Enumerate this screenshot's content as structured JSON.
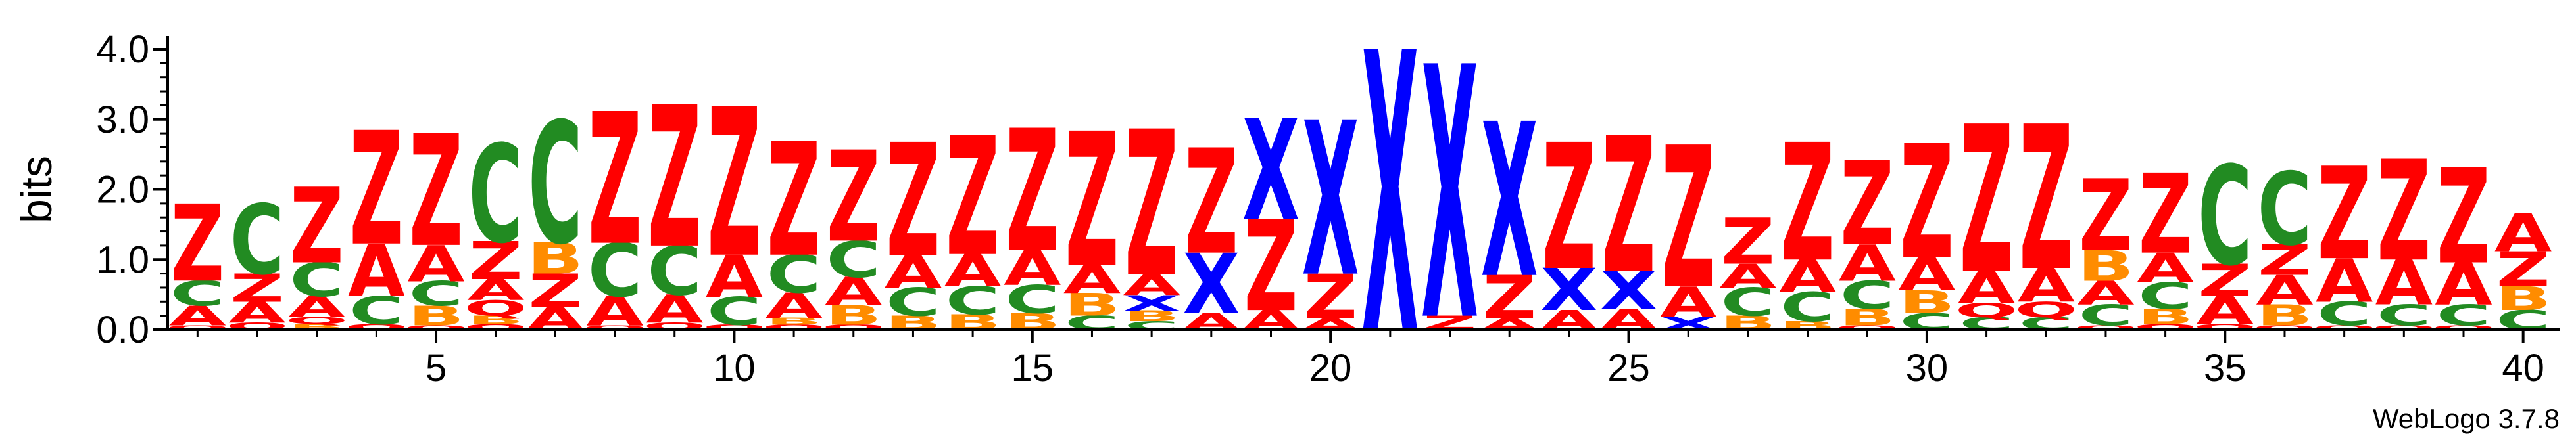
{
  "chart_data": {
    "type": "sequence-logo",
    "ylabel": "bits",
    "ylim": [
      0,
      4.0
    ],
    "yticks": [
      "0.0",
      "1.0",
      "2.0",
      "3.0",
      "4.0"
    ],
    "xticks": [
      5,
      10,
      15,
      20,
      25,
      30,
      35,
      40
    ],
    "credit": "WebLogo 3.7.8",
    "colors": {
      "Z": "#ff0000",
      "X": "#0000ff",
      "C": "#228b22",
      "A": "#ff0000",
      "B": "#ff8c00",
      "Q": "#ff0000"
    },
    "positions": [
      {
        "pos": 1,
        "stack": [
          [
            "Q",
            0.06
          ],
          [
            "A",
            0.28
          ],
          [
            "C",
            0.36
          ],
          [
            "Z",
            1.1
          ]
        ]
      },
      {
        "pos": 2,
        "stack": [
          [
            "Q",
            0.1
          ],
          [
            "A",
            0.3
          ],
          [
            "Z",
            0.4
          ],
          [
            "C",
            1.0
          ]
        ]
      },
      {
        "pos": 3,
        "stack": [
          [
            "B",
            0.08
          ],
          [
            "Q",
            0.1
          ],
          [
            "A",
            0.3
          ],
          [
            "C",
            0.48
          ],
          [
            "Z",
            1.08
          ]
        ]
      },
      {
        "pos": 4,
        "stack": [
          [
            "Q",
            0.08
          ],
          [
            "C",
            0.4
          ],
          [
            "A",
            0.75
          ],
          [
            "Z",
            1.62
          ]
        ]
      },
      {
        "pos": 5,
        "stack": [
          [
            "Q",
            0.06
          ],
          [
            "B",
            0.28
          ],
          [
            "C",
            0.35
          ],
          [
            "A",
            0.52
          ],
          [
            "Z",
            1.6
          ]
        ]
      },
      {
        "pos": 6,
        "stack": [
          [
            "Q",
            0.08
          ],
          [
            "B",
            0.12
          ],
          [
            "Q",
            0.22
          ],
          [
            "A",
            0.3
          ],
          [
            "Z",
            0.54
          ],
          [
            "C",
            1.4
          ]
        ]
      },
      {
        "pos": 7,
        "stack": [
          [
            "A",
            0.32
          ],
          [
            "Z",
            0.48
          ],
          [
            "B",
            0.45
          ],
          [
            "C",
            1.74
          ]
        ]
      },
      {
        "pos": 8,
        "stack": [
          [
            "Q",
            0.06
          ],
          [
            "A",
            0.42
          ],
          [
            "C",
            0.76
          ],
          [
            "Z",
            1.88
          ]
        ]
      },
      {
        "pos": 9,
        "stack": [
          [
            "Q",
            0.1
          ],
          [
            "A",
            0.4
          ],
          [
            "C",
            0.7
          ],
          [
            "Z",
            2.02
          ]
        ]
      },
      {
        "pos": 10,
        "stack": [
          [
            "Q",
            0.07
          ],
          [
            "C",
            0.4
          ],
          [
            "A",
            0.6
          ],
          [
            "Z",
            2.12
          ]
        ]
      },
      {
        "pos": 11,
        "stack": [
          [
            "Q",
            0.07
          ],
          [
            "B",
            0.1
          ],
          [
            "A",
            0.36
          ],
          [
            "C",
            0.54
          ],
          [
            "Z",
            1.62
          ]
        ]
      },
      {
        "pos": 12,
        "stack": [
          [
            "Q",
            0.07
          ],
          [
            "B",
            0.28
          ],
          [
            "A",
            0.4
          ],
          [
            "C",
            0.52
          ],
          [
            "Z",
            1.3
          ]
        ]
      },
      {
        "pos": 13,
        "stack": [
          [
            "B",
            0.2
          ],
          [
            "C",
            0.4
          ],
          [
            "A",
            0.46
          ],
          [
            "Z",
            1.62
          ]
        ]
      },
      {
        "pos": 14,
        "stack": [
          [
            "B",
            0.22
          ],
          [
            "C",
            0.4
          ],
          [
            "A",
            0.46
          ],
          [
            "Z",
            1.7
          ]
        ]
      },
      {
        "pos": 15,
        "stack": [
          [
            "B",
            0.24
          ],
          [
            "C",
            0.4
          ],
          [
            "A",
            0.5
          ],
          [
            "Z",
            1.74
          ]
        ]
      },
      {
        "pos": 16,
        "stack": [
          [
            "C",
            0.2
          ],
          [
            "B",
            0.32
          ],
          [
            "A",
            0.4
          ],
          [
            "Z",
            1.92
          ]
        ]
      },
      {
        "pos": 17,
        "stack": [
          [
            "C",
            0.12
          ],
          [
            "B",
            0.15
          ],
          [
            "X",
            0.22
          ],
          [
            "A",
            0.3
          ],
          [
            "Z",
            2.08
          ]
        ]
      },
      {
        "pos": 18,
        "stack": [
          [
            "A",
            0.24
          ],
          [
            "X",
            0.86
          ],
          [
            "Z",
            1.5
          ]
        ]
      },
      {
        "pos": 19,
        "stack": [
          [
            "A",
            0.28
          ],
          [
            "Z",
            1.3
          ],
          [
            "X",
            1.44
          ]
        ]
      },
      {
        "pos": 20,
        "stack": [
          [
            "A",
            0.16
          ],
          [
            "Z",
            0.64
          ],
          [
            "X",
            2.2
          ]
        ]
      },
      {
        "pos": 21,
        "stack": [
          [
            "X",
            4.0
          ]
        ]
      },
      {
        "pos": 22,
        "stack": [
          [
            "Z",
            0.2
          ],
          [
            "X",
            3.6
          ]
        ]
      },
      {
        "pos": 23,
        "stack": [
          [
            "A",
            0.16
          ],
          [
            "Z",
            0.62
          ],
          [
            "X",
            2.2
          ]
        ]
      },
      {
        "pos": 24,
        "stack": [
          [
            "A",
            0.28
          ],
          [
            "X",
            0.6
          ],
          [
            "Z",
            1.8
          ]
        ]
      },
      {
        "pos": 25,
        "stack": [
          [
            "A",
            0.3
          ],
          [
            "X",
            0.54
          ],
          [
            "Z",
            1.94
          ]
        ]
      },
      {
        "pos": 26,
        "stack": [
          [
            "X",
            0.18
          ],
          [
            "A",
            0.44
          ],
          [
            "Z",
            2.02
          ]
        ]
      },
      {
        "pos": 27,
        "stack": [
          [
            "B",
            0.2
          ],
          [
            "C",
            0.4
          ],
          [
            "A",
            0.34
          ],
          [
            "Z",
            0.66
          ]
        ]
      },
      {
        "pos": 28,
        "stack": [
          [
            "B",
            0.12
          ],
          [
            "C",
            0.42
          ],
          [
            "A",
            0.46
          ],
          [
            "Z",
            1.68
          ]
        ]
      },
      {
        "pos": 29,
        "stack": [
          [
            "Q",
            0.06
          ],
          [
            "B",
            0.24
          ],
          [
            "C",
            0.4
          ],
          [
            "A",
            0.52
          ],
          [
            "Z",
            1.2
          ]
        ]
      },
      {
        "pos": 30,
        "stack": [
          [
            "C",
            0.24
          ],
          [
            "B",
            0.32
          ],
          [
            "A",
            0.48
          ],
          [
            "Z",
            1.62
          ]
        ]
      },
      {
        "pos": 31,
        "stack": [
          [
            "C",
            0.18
          ],
          [
            "Q",
            0.2
          ],
          [
            "A",
            0.46
          ],
          [
            "Z",
            2.1
          ]
        ]
      },
      {
        "pos": 32,
        "stack": [
          [
            "C",
            0.18
          ],
          [
            "Q",
            0.22
          ],
          [
            "A",
            0.48
          ],
          [
            "Z",
            2.06
          ]
        ]
      },
      {
        "pos": 33,
        "stack": [
          [
            "Q",
            0.06
          ],
          [
            "C",
            0.3
          ],
          [
            "A",
            0.34
          ],
          [
            "B",
            0.44
          ],
          [
            "Z",
            1.02
          ]
        ]
      },
      {
        "pos": 34,
        "stack": [
          [
            "Q",
            0.08
          ],
          [
            "B",
            0.22
          ],
          [
            "C",
            0.38
          ],
          [
            "A",
            0.42
          ],
          [
            "Z",
            1.14
          ]
        ]
      },
      {
        "pos": 35,
        "stack": [
          [
            "Q",
            0.08
          ],
          [
            "A",
            0.4
          ],
          [
            "Z",
            0.46
          ],
          [
            "C",
            1.42
          ]
        ]
      },
      {
        "pos": 36,
        "stack": [
          [
            "Q",
            0.06
          ],
          [
            "B",
            0.3
          ],
          [
            "A",
            0.42
          ],
          [
            "Z",
            0.44
          ],
          [
            "C",
            1.04
          ]
        ]
      },
      {
        "pos": 37,
        "stack": [
          [
            "Q",
            0.06
          ],
          [
            "C",
            0.34
          ],
          [
            "A",
            0.62
          ],
          [
            "Z",
            1.32
          ]
        ]
      },
      {
        "pos": 38,
        "stack": [
          [
            "Q",
            0.06
          ],
          [
            "C",
            0.3
          ],
          [
            "A",
            0.64
          ],
          [
            "Z",
            1.44
          ]
        ]
      },
      {
        "pos": 39,
        "stack": [
          [
            "Q",
            0.06
          ],
          [
            "C",
            0.3
          ],
          [
            "A",
            0.6
          ],
          [
            "Z",
            1.36
          ]
        ]
      },
      {
        "pos": 40,
        "stack": [
          [
            "C",
            0.28
          ],
          [
            "B",
            0.34
          ],
          [
            "Z",
            0.5
          ],
          [
            "A",
            0.54
          ]
        ]
      }
    ]
  }
}
